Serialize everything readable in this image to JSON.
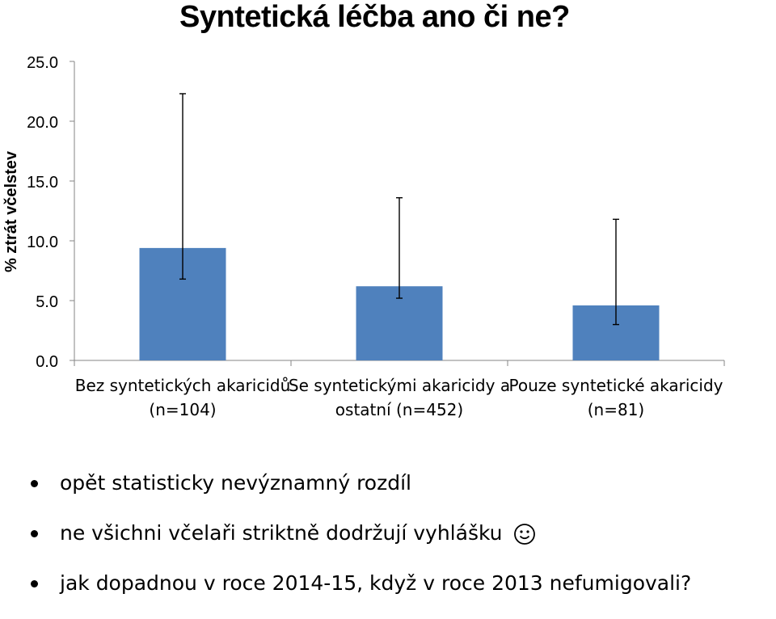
{
  "slide": {
    "title": "Syntetická léčba ano či ne?"
  },
  "chart_data": {
    "type": "bar",
    "title": "",
    "ylabel": "% ztrát včelstev",
    "xlabel": "",
    "ylim": [
      0,
      25
    ],
    "yticks": [
      0,
      5,
      10,
      15,
      20,
      25
    ],
    "ytick_labels": [
      "0.0",
      "5.0",
      "10.0",
      "15.0",
      "20.0",
      "25.0"
    ],
    "grid": false,
    "legend": "none",
    "categories": [
      [
        "Bez syntetických akaricidů",
        "(n=104)"
      ],
      [
        "Se syntetickými akaricidy a",
        "ostatní (n=452)"
      ],
      [
        "Pouze syntetické akaricidy",
        "(n=81)"
      ]
    ],
    "values": [
      9.4,
      6.2,
      4.6
    ],
    "error_low": [
      6.8,
      5.2,
      3.0
    ],
    "error_high": [
      22.3,
      13.6,
      11.8
    ],
    "bar_color": "#4f81bd",
    "axis_color": "#868686"
  },
  "bullets": [
    {
      "text": "opět statisticky nevýznamný rozdíl"
    },
    {
      "text": "ne všichni včelaři striktně dodržují vyhlášku",
      "icon": "smiley-icon"
    },
    {
      "text": "jak dopadnou v roce 2014-15, když v roce 2013 nefumigovali?"
    }
  ]
}
